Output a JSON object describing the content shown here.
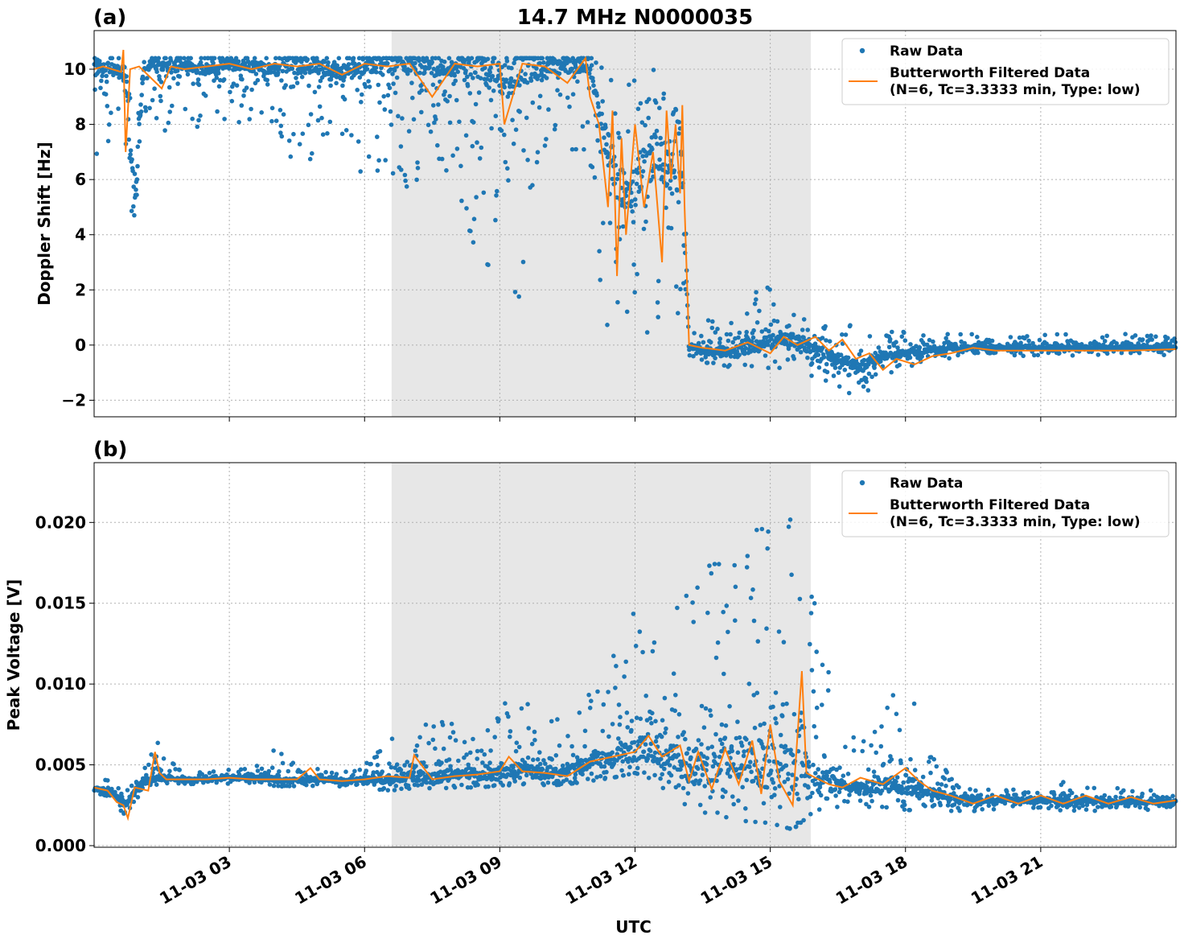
{
  "chart_data": [
    {
      "type": "scatter",
      "panel_label": "(a)",
      "title": "14.7 MHz N0000035",
      "ylabel": "Doppler Shift [Hz]",
      "xlabel": "",
      "xlim_hours": [
        0,
        24
      ],
      "ylim": [
        -2.6,
        11.4
      ],
      "yticks": [
        -2,
        0,
        2,
        4,
        6,
        8,
        10
      ],
      "ytick_labels": [
        "−2",
        "0",
        "2",
        "4",
        "6",
        "8",
        "10"
      ],
      "grid": true,
      "legend_position": "top-right",
      "shaded_region_hours": [
        6.6,
        15.9
      ],
      "series": [
        {
          "name": "Raw Data",
          "kind": "points",
          "color": "#1f77b4",
          "x_hours": [
            0.1,
            0.3,
            0.5,
            0.7,
            0.9,
            1.1,
            1.5,
            2.0,
            2.5,
            3.0,
            3.5,
            4.0,
            4.5,
            5.0,
            5.5,
            6.0,
            6.5,
            7.0,
            7.5,
            8.0,
            8.5,
            9.0,
            9.5,
            10.0,
            10.5,
            11.0,
            11.3,
            11.6,
            11.9,
            12.2,
            12.5,
            12.8,
            13.0,
            13.2,
            13.5,
            14.0,
            14.5,
            15.0,
            15.5,
            16.0,
            16.5,
            17.0,
            17.5,
            18.0,
            18.5,
            19.0,
            20.0,
            21.0,
            22.0,
            23.0,
            23.9
          ],
          "y": [
            10.1,
            9.9,
            10.0,
            9.8,
            5.0,
            10.1,
            10.2,
            10.1,
            10.0,
            10.2,
            10.1,
            10.0,
            10.2,
            10.1,
            9.9,
            10.2,
            10.1,
            10.2,
            10.0,
            10.1,
            10.2,
            9.5,
            10.1,
            10.0,
            10.1,
            10.2,
            7.5,
            6.0,
            5.5,
            6.5,
            7.0,
            6.0,
            8.0,
            0.0,
            -0.2,
            -0.3,
            -0.1,
            0.1,
            0.2,
            -0.2,
            -0.5,
            -0.8,
            -0.4,
            -0.3,
            -0.2,
            -0.1,
            -0.1,
            -0.1,
            -0.1,
            -0.1,
            -0.1
          ],
          "y_low": [
            6.5,
            7.0,
            8.5,
            6.0,
            2.4,
            8.5,
            7.5,
            8.0,
            7.8,
            8.0,
            8.0,
            8.0,
            6.0,
            7.0,
            7.0,
            6.0,
            6.0,
            5.5,
            7.0,
            5.5,
            3.2,
            2.5,
            1.0,
            6.5,
            7.0,
            6.5,
            0.5,
            0.0,
            -0.2,
            -0.2,
            0.0,
            0.2,
            0.5,
            -0.5,
            -0.7,
            -0.8,
            -0.9,
            -1.0,
            -0.8,
            -1.2,
            -1.6,
            -1.9,
            -1.5,
            -0.9,
            -0.6,
            -0.5,
            -0.4,
            -0.4,
            -0.4,
            -0.4,
            -0.4
          ],
          "y_high": [
            10.4,
            10.4,
            10.4,
            10.4,
            10.4,
            10.4,
            10.4,
            10.4,
            10.4,
            10.4,
            10.4,
            10.4,
            10.4,
            10.4,
            10.4,
            10.4,
            10.4,
            10.4,
            10.4,
            10.4,
            10.4,
            10.4,
            10.4,
            10.4,
            10.4,
            10.4,
            10.4,
            10.4,
            10.4,
            10.4,
            10.4,
            10.4,
            10.4,
            0.6,
            1.0,
            1.5,
            1.8,
            2.4,
            1.9,
            1.2,
            1.0,
            0.6,
            0.5,
            0.5,
            0.4,
            0.4,
            0.4,
            0.4,
            0.4,
            0.4,
            0.3
          ]
        },
        {
          "name": "Butterworth Filtered Data",
          "name_line2": "(N=6, Tc=3.3333 min, Type: low)",
          "kind": "line",
          "color": "#ff7f0e",
          "x_hours": [
            0.0,
            0.2,
            0.4,
            0.6,
            0.65,
            0.7,
            0.8,
            1.0,
            1.5,
            1.7,
            2.0,
            2.5,
            3.0,
            3.5,
            4.0,
            4.5,
            5.0,
            5.5,
            6.0,
            6.5,
            7.0,
            7.5,
            8.0,
            8.5,
            9.0,
            9.1,
            9.5,
            10.0,
            10.5,
            10.9,
            11.0,
            11.2,
            11.4,
            11.5,
            11.6,
            11.7,
            11.8,
            12.0,
            12.2,
            12.4,
            12.6,
            12.7,
            12.8,
            12.9,
            13.0,
            13.05,
            13.1,
            13.2,
            13.5,
            14.0,
            14.5,
            15.0,
            15.3,
            15.6,
            16.0,
            16.3,
            16.6,
            16.9,
            17.2,
            17.5,
            17.8,
            18.2,
            18.6,
            19.0,
            19.5,
            20.0,
            21.0,
            22.0,
            23.0,
            24.0
          ],
          "y": [
            10.0,
            10.1,
            10.0,
            9.9,
            10.7,
            7.0,
            10.0,
            10.1,
            9.3,
            10.1,
            10.0,
            10.1,
            10.2,
            10.0,
            10.2,
            10.1,
            10.2,
            9.8,
            10.2,
            10.1,
            10.2,
            9.0,
            10.2,
            10.1,
            10.2,
            8.0,
            10.2,
            10.1,
            9.5,
            10.4,
            9.0,
            8.0,
            5.0,
            8.5,
            2.5,
            7.5,
            4.0,
            8.0,
            5.0,
            7.0,
            3.0,
            8.5,
            6.0,
            8.0,
            5.5,
            8.7,
            5.0,
            0.0,
            -0.1,
            -0.2,
            0.1,
            -0.3,
            0.3,
            0.0,
            0.3,
            -0.2,
            0.2,
            -0.5,
            -0.3,
            -0.9,
            -0.5,
            -0.7,
            -0.4,
            -0.3,
            -0.1,
            -0.2,
            -0.2,
            -0.2,
            -0.2,
            -0.15
          ]
        }
      ]
    },
    {
      "type": "scatter",
      "panel_label": "(b)",
      "title": "",
      "ylabel": "Peak Voltage [V]",
      "xlabel": "UTC",
      "xlim_hours": [
        0,
        24
      ],
      "ylim": [
        -0.0001,
        0.0237
      ],
      "yticks": [
        0.0,
        0.005,
        0.01,
        0.015,
        0.02
      ],
      "ytick_labels": [
        "0.000",
        "0.005",
        "0.010",
        "0.015",
        "0.020"
      ],
      "xtick_hours": [
        3,
        6,
        9,
        12,
        15,
        18,
        21
      ],
      "xtick_labels": [
        "11-03 03",
        "11-03 06",
        "11-03 09",
        "11-03 12",
        "11-03 15",
        "11-03 18",
        "11-03 21"
      ],
      "grid": true,
      "legend_position": "top-right",
      "shaded_region_hours": [
        6.6,
        15.9
      ],
      "series": [
        {
          "name": "Raw Data",
          "kind": "points",
          "color": "#1f77b4",
          "x_hours": [
            0.1,
            0.4,
            0.7,
            1.0,
            1.4,
            2.0,
            2.5,
            3.0,
            3.5,
            4.0,
            4.5,
            5.0,
            5.5,
            6.0,
            6.5,
            7.0,
            7.5,
            8.0,
            8.5,
            9.0,
            9.5,
            10.0,
            10.5,
            11.0,
            11.5,
            12.0,
            12.5,
            13.0,
            13.5,
            14.0,
            14.5,
            15.0,
            15.5,
            16.0,
            16.5,
            17.0,
            17.5,
            18.0,
            18.5,
            19.0,
            19.5,
            20.0,
            21.0,
            22.0,
            23.0,
            23.9
          ],
          "y": [
            0.0035,
            0.0033,
            0.0025,
            0.0038,
            0.0042,
            0.0041,
            0.0041,
            0.0042,
            0.0042,
            0.0041,
            0.004,
            0.0041,
            0.004,
            0.0041,
            0.0041,
            0.0043,
            0.0042,
            0.0044,
            0.0043,
            0.0045,
            0.0046,
            0.0045,
            0.0047,
            0.0052,
            0.0055,
            0.006,
            0.0058,
            0.005,
            0.0048,
            0.0055,
            0.0052,
            0.005,
            0.0045,
            0.004,
            0.0038,
            0.0035,
            0.0037,
            0.0038,
            0.0034,
            0.003,
            0.0028,
            0.0028,
            0.0028,
            0.0028,
            0.0027,
            0.0027
          ],
          "y_low": [
            0.003,
            0.0028,
            0.0012,
            0.003,
            0.0038,
            0.0038,
            0.0038,
            0.0038,
            0.0038,
            0.0037,
            0.0036,
            0.0036,
            0.0035,
            0.0036,
            0.0034,
            0.0035,
            0.0035,
            0.0036,
            0.0036,
            0.0037,
            0.0038,
            0.0037,
            0.0038,
            0.004,
            0.0042,
            0.0045,
            0.004,
            0.0022,
            0.0018,
            0.0017,
            0.0015,
            0.0014,
            0.001,
            0.0022,
            0.0024,
            0.0024,
            0.0024,
            0.0022,
            0.0022,
            0.0021,
            0.0021,
            0.0021,
            0.0021,
            0.0021,
            0.0021,
            0.0021
          ],
          "y_high": [
            0.0042,
            0.004,
            0.0035,
            0.0045,
            0.0064,
            0.0046,
            0.0046,
            0.0047,
            0.0048,
            0.006,
            0.005,
            0.0048,
            0.0046,
            0.0052,
            0.0068,
            0.0072,
            0.008,
            0.0075,
            0.0068,
            0.009,
            0.0093,
            0.0085,
            0.0078,
            0.0098,
            0.0125,
            0.0155,
            0.0148,
            0.0161,
            0.0175,
            0.0185,
            0.0213,
            0.021,
            0.0227,
            0.0164,
            0.007,
            0.0068,
            0.0089,
            0.0103,
            0.0065,
            0.0042,
            0.0037,
            0.0034,
            0.0043,
            0.0037,
            0.0035,
            0.0034
          ]
        },
        {
          "name": "Butterworth Filtered Data",
          "name_line2": "(N=6, Tc=3.3333 min, Type: low)",
          "kind": "line",
          "color": "#ff7f0e",
          "x_hours": [
            0.0,
            0.3,
            0.5,
            0.65,
            0.75,
            0.9,
            1.2,
            1.35,
            1.45,
            1.6,
            2.0,
            2.5,
            3.0,
            3.5,
            4.0,
            4.5,
            4.8,
            5.0,
            5.5,
            6.0,
            6.5,
            7.0,
            7.1,
            7.5,
            8.0,
            8.5,
            9.0,
            9.2,
            9.5,
            10.0,
            10.5,
            11.0,
            11.5,
            12.0,
            12.3,
            12.6,
            13.0,
            13.2,
            13.4,
            13.7,
            14.0,
            14.3,
            14.6,
            14.8,
            15.0,
            15.2,
            15.5,
            15.7,
            15.8,
            16.0,
            16.3,
            16.6,
            17.0,
            17.5,
            18.0,
            18.3,
            18.6,
            19.0,
            19.5,
            20.0,
            20.5,
            21.0,
            21.5,
            22.0,
            22.5,
            23.0,
            23.5,
            24.0
          ],
          "y": [
            0.0036,
            0.0034,
            0.0027,
            0.0025,
            0.0017,
            0.0036,
            0.0034,
            0.0058,
            0.0045,
            0.0041,
            0.0041,
            0.0041,
            0.0042,
            0.0041,
            0.0041,
            0.0041,
            0.0048,
            0.0041,
            0.004,
            0.0041,
            0.0043,
            0.0042,
            0.0056,
            0.0041,
            0.0043,
            0.0044,
            0.0046,
            0.0055,
            0.0046,
            0.0045,
            0.0043,
            0.0052,
            0.0055,
            0.0058,
            0.0068,
            0.0055,
            0.0062,
            0.004,
            0.0058,
            0.0035,
            0.006,
            0.0038,
            0.0065,
            0.0032,
            0.0075,
            0.004,
            0.0025,
            0.0108,
            0.0045,
            0.0042,
            0.0038,
            0.0036,
            0.0042,
            0.0038,
            0.0048,
            0.004,
            0.0034,
            0.0031,
            0.0026,
            0.0031,
            0.0026,
            0.0031,
            0.0026,
            0.0031,
            0.0026,
            0.003,
            0.0026,
            0.0028
          ]
        }
      ]
    }
  ]
}
